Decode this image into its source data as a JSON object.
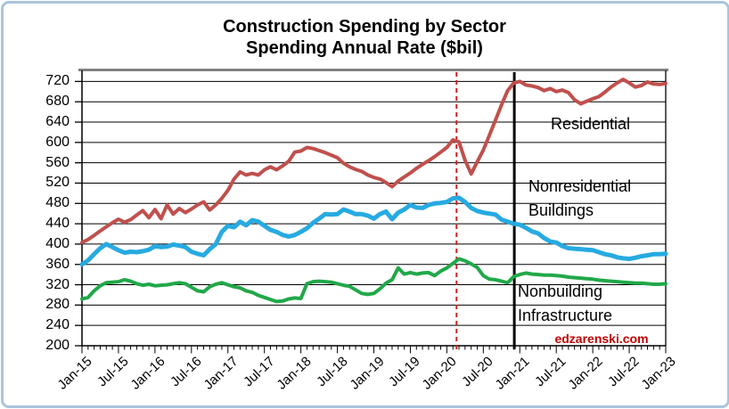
{
  "title": {
    "line1": "Construction Spending by Sector",
    "line2": "Spending Annual Rate ($bil)"
  },
  "watermark": {
    "text": "edzarenski.com",
    "color": "#c00000"
  },
  "frame": {
    "border_color": "#a9c4dc",
    "plot_top_border_color": "#808080",
    "gridline_color": "#000000"
  },
  "annotations": {
    "residential": {
      "line1": "Residential",
      "line2": ""
    },
    "nonres": {
      "line1": "Nonresidential",
      "line2": "Buildings"
    },
    "nonbuilding": {
      "line1": "Nonbuilding",
      "line2": "Infrastructure"
    }
  },
  "chart_data": {
    "type": "line",
    "title": "Construction Spending by Sector — Spending Annual Rate ($bil)",
    "xlabel": "",
    "ylabel": "",
    "ylim": [
      200,
      720
    ],
    "y_ticks": [
      200,
      240,
      280,
      320,
      360,
      400,
      440,
      480,
      520,
      560,
      600,
      640,
      680,
      720
    ],
    "x_tick_labels": [
      "Jan-15",
      "Jul-15",
      "Jan-16",
      "Jul-16",
      "Jan-17",
      "Jul-17",
      "Jan-18",
      "Jul-18",
      "Jan-19",
      "Jul-19",
      "Jan-20",
      "Jul-20",
      "Jan-21",
      "Jul-21",
      "Jan-22",
      "Jul-22",
      "Jan-23"
    ],
    "x_months_total": 96,
    "grid": true,
    "legend_position": "inline-labels",
    "series": [
      {
        "name": "Residential",
        "color": "#c0504d",
        "stroke_width": 4,
        "values": [
          403,
          409,
          417,
          426,
          434,
          442,
          449,
          443,
          448,
          457,
          466,
          452,
          468,
          450,
          477,
          459,
          470,
          462,
          469,
          477,
          483,
          467,
          477,
          490,
          506,
          528,
          542,
          536,
          539,
          536,
          546,
          552,
          546,
          554,
          563,
          581,
          583,
          590,
          588,
          584,
          580,
          575,
          570,
          559,
          552,
          547,
          543,
          536,
          531,
          528,
          521,
          513,
          524,
          532,
          540,
          549,
          557,
          564,
          572,
          581,
          590,
          605,
          601,
          565,
          538,
          562,
          585,
          614,
          644,
          674,
          702,
          717,
          720,
          713,
          711,
          708,
          702,
          706,
          700,
          703,
          698,
          684,
          676,
          681,
          686,
          690,
          699,
          709,
          717,
          724,
          717,
          709,
          712,
          719,
          715,
          714,
          716
        ]
      },
      {
        "name": "Nonresidential Buildings",
        "color": "#27aae1",
        "stroke_width": 5,
        "values": [
          360,
          368,
          380,
          392,
          400,
          394,
          388,
          383,
          385,
          384,
          386,
          389,
          396,
          394,
          395,
          399,
          397,
          394,
          385,
          381,
          378,
          390,
          400,
          424,
          436,
          433,
          444,
          437,
          447,
          444,
          436,
          428,
          424,
          418,
          415,
          418,
          424,
          431,
          442,
          450,
          459,
          458,
          459,
          468,
          464,
          459,
          459,
          456,
          450,
          459,
          464,
          449,
          462,
          468,
          477,
          472,
          471,
          477,
          480,
          481,
          483,
          490,
          491,
          483,
          471,
          465,
          462,
          460,
          458,
          448,
          444,
          440,
          438,
          432,
          425,
          421,
          412,
          405,
          403,
          396,
          392,
          391,
          390,
          389,
          388,
          384,
          380,
          378,
          374,
          372,
          371,
          373,
          376,
          378,
          380,
          380,
          381
        ]
      },
      {
        "name": "Nonbuilding Infrastructure",
        "color": "#21a849",
        "stroke_width": 4,
        "values": [
          292,
          295,
          308,
          318,
          324,
          325,
          326,
          330,
          327,
          322,
          319,
          321,
          318,
          319,
          320,
          322,
          324,
          322,
          315,
          308,
          306,
          316,
          321,
          324,
          320,
          316,
          314,
          308,
          305,
          299,
          295,
          291,
          287,
          288,
          292,
          294,
          293,
          322,
          326,
          327,
          326,
          325,
          322,
          319,
          317,
          310,
          303,
          301,
          303,
          312,
          323,
          330,
          353,
          341,
          344,
          341,
          343,
          344,
          338,
          347,
          353,
          362,
          371,
          367,
          361,
          354,
          338,
          331,
          330,
          327,
          324,
          336,
          340,
          343,
          341,
          340,
          339,
          339,
          338,
          337,
          335,
          334,
          333,
          332,
          331,
          329,
          328,
          327,
          326,
          325,
          324,
          323,
          323,
          322,
          321,
          321,
          322
        ]
      }
    ],
    "vlines": [
      {
        "name": "covid-start-marker",
        "month_index": 61.6,
        "color": "#cc2020",
        "style": "dashed",
        "width": 2
      },
      {
        "name": "forecast-start-marker",
        "month_index": 71.1,
        "color": "#000000",
        "style": "solid",
        "width": 3
      }
    ]
  }
}
